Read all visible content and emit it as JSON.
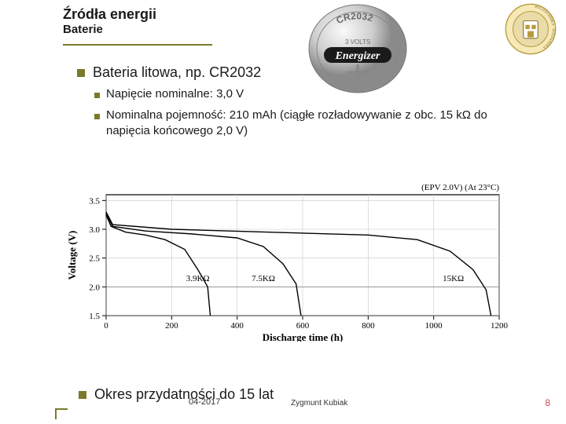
{
  "header": {
    "title": "Źródła energii",
    "subtitle": "Baterie"
  },
  "logo": {
    "outer_ring_text": "POLITECHNIKA POZNAŃSKA",
    "ring_color": "#f7e9b8",
    "ring_stroke": "#b89a3a",
    "inner_bg": "#e9dca8",
    "crest_color": "#b89a3a"
  },
  "battery": {
    "model": "CR2032",
    "voltage_label": "3 VOLTS",
    "brand": "Energizer",
    "face_gradient_light": "#f2f2f2",
    "face_gradient_dark": "#9a9a9a",
    "brand_bar": "#1a1a1a",
    "brand_text_color": "#ffffff",
    "engrave_color": "#6a6a6a"
  },
  "bullets": {
    "main": "Bateria litowa, np. CR2032",
    "sub1": "Napięcie nominalne: 3,0 V",
    "sub2": "Nominalna pojemność: 210 mAh (ciągłe rozładowywanie z obc. 15 kΩ do napięcia końcowego 2,0 V)"
  },
  "chart": {
    "type": "line",
    "x_label": "Discharge time (h)",
    "y_label": "Voltage (V)",
    "header_right": "(EPV 2.0V)  (At 23°C)",
    "x_ticks": [
      0,
      200,
      400,
      600,
      800,
      1000,
      1200
    ],
    "y_ticks": [
      1.5,
      2.0,
      2.5,
      3.0,
      3.5
    ],
    "xlim": [
      0,
      1200
    ],
    "ylim": [
      1.5,
      3.6
    ],
    "background_color": "#ffffff",
    "border_color": "#000000",
    "grid_color": "#c8c8c8",
    "tick_font_size": 11,
    "label_font_size": 13,
    "series": [
      {
        "label": "3.9KΩ",
        "color": "#000000",
        "width": 1.4,
        "points": [
          [
            0,
            3.25
          ],
          [
            15,
            3.05
          ],
          [
            60,
            2.95
          ],
          [
            120,
            2.9
          ],
          [
            180,
            2.82
          ],
          [
            240,
            2.65
          ],
          [
            280,
            2.3
          ],
          [
            310,
            2.0
          ],
          [
            318,
            1.5
          ]
        ]
      },
      {
        "label": "7.5KΩ",
        "color": "#000000",
        "width": 1.4,
        "points": [
          [
            0,
            3.28
          ],
          [
            20,
            3.05
          ],
          [
            120,
            2.97
          ],
          [
            260,
            2.92
          ],
          [
            400,
            2.85
          ],
          [
            480,
            2.7
          ],
          [
            540,
            2.4
          ],
          [
            580,
            2.05
          ],
          [
            595,
            1.5
          ]
        ]
      },
      {
        "label": "15KΩ",
        "color": "#000000",
        "width": 1.4,
        "points": [
          [
            0,
            3.3
          ],
          [
            20,
            3.08
          ],
          [
            200,
            3.0
          ],
          [
            500,
            2.95
          ],
          [
            800,
            2.9
          ],
          [
            950,
            2.82
          ],
          [
            1050,
            2.62
          ],
          [
            1120,
            2.3
          ],
          [
            1160,
            1.95
          ],
          [
            1175,
            1.5
          ]
        ]
      }
    ],
    "series_label_positions": [
      {
        "label": "3.9KΩ",
        "x": 280,
        "y": 2.1
      },
      {
        "label": "7.5KΩ",
        "x": 480,
        "y": 2.1
      },
      {
        "label": "15KΩ",
        "x": 1060,
        "y": 2.1
      }
    ]
  },
  "footer_bullet": "Okres przydatności do 15 lat",
  "footer": {
    "date": "04-2017",
    "author": "Zygmunt Kubiak",
    "page": "8"
  },
  "style": {
    "accent": "#7a7a2a",
    "text_color": "#1a1a1a",
    "page_num_color": "#c0504d"
  }
}
